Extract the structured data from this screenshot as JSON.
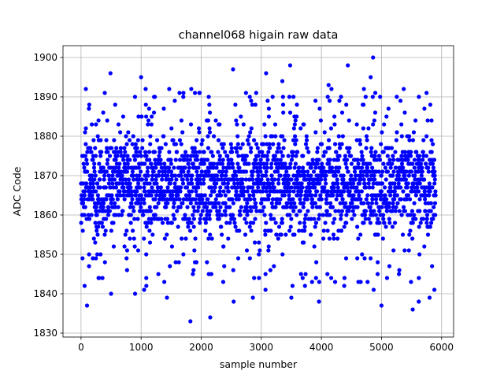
{
  "chart_data": {
    "type": "scatter",
    "title": "channel068 higain raw data",
    "xlabel": "sample number",
    "ylabel": "ADC Code",
    "xlim": [
      -300,
      6200
    ],
    "ylim": [
      1829,
      1903
    ],
    "xticks": [
      0,
      1000,
      2000,
      3000,
      4000,
      5000,
      6000
    ],
    "yticks": [
      1830,
      1840,
      1850,
      1860,
      1870,
      1880,
      1890,
      1900
    ],
    "grid": true,
    "marker_color": "#0000ff",
    "series": [
      {
        "n_points": 6000,
        "x_range": [
          0,
          5900
        ],
        "typical_range": [
          1853,
          1882
        ],
        "center": 1868,
        "outliers": [
          [
            100,
            1837
          ],
          [
            500,
            1840
          ],
          [
            900,
            1840
          ],
          [
            1050,
            1841
          ],
          [
            1430,
            1839
          ],
          [
            1820,
            1833
          ],
          [
            2150,
            1834
          ],
          [
            2540,
            1838
          ],
          [
            2860,
            1839
          ],
          [
            3070,
            1841
          ],
          [
            3500,
            1839
          ],
          [
            3960,
            1838
          ],
          [
            4380,
            1842
          ],
          [
            4870,
            1841
          ],
          [
            5000,
            1837
          ],
          [
            5520,
            1836
          ],
          [
            5620,
            1838
          ],
          [
            5800,
            1839
          ],
          [
            5880,
            1841
          ],
          [
            490,
            1896
          ],
          [
            1000,
            1895
          ],
          [
            1560,
            1889
          ],
          [
            2530,
            1897
          ],
          [
            3080,
            1896
          ],
          [
            3350,
            1894
          ],
          [
            3480,
            1898
          ],
          [
            4120,
            1893
          ],
          [
            4440,
            1898
          ],
          [
            4860,
            1900
          ],
          [
            4820,
            1895
          ],
          [
            5370,
            1892
          ],
          [
            5750,
            1891
          ]
        ]
      }
    ]
  }
}
